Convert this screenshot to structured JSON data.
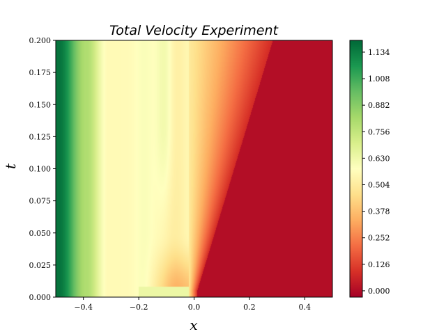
{
  "chart_data": {
    "type": "heatmap",
    "title": "Total Velocity Experiment",
    "xlabel": "x",
    "ylabel": "t",
    "xlim": [
      -0.5,
      0.5
    ],
    "ylim": [
      0.0,
      0.2
    ],
    "x_ticks": [
      -0.4,
      -0.2,
      0.0,
      0.2,
      0.4
    ],
    "x_tick_labels": [
      "−0.4",
      "−0.2",
      "0.0",
      "0.2",
      "0.4"
    ],
    "y_ticks": [
      0.0,
      0.025,
      0.05,
      0.075,
      0.1,
      0.125,
      0.15,
      0.175,
      0.2
    ],
    "y_tick_labels": [
      "0.000",
      "0.025",
      "0.050",
      "0.075",
      "0.100",
      "0.125",
      "0.150",
      "0.175",
      "0.200"
    ],
    "colorbar": {
      "colormap": "RdYlGn",
      "range": [
        -0.03,
        1.19
      ],
      "ticks": [
        0.0,
        0.126,
        0.252,
        0.378,
        0.504,
        0.63,
        0.756,
        0.882,
        1.008,
        1.134
      ],
      "tick_labels": [
        "0.000",
        "0.126",
        "0.252",
        "0.378",
        "0.504",
        "0.630",
        "0.756",
        "0.882",
        "1.008",
        "1.134"
      ]
    },
    "samples": [
      {
        "x": -0.49,
        "t": 0.1,
        "value": 1.15
      },
      {
        "x": -0.4,
        "t": 0.1,
        "value": 0.8
      },
      {
        "x": -0.3,
        "t": 0.1,
        "value": 0.56
      },
      {
        "x": -0.2,
        "t": 0.1,
        "value": 0.6
      },
      {
        "x": -0.12,
        "t": 0.15,
        "value": 0.64
      },
      {
        "x": 0.02,
        "t": 0.15,
        "value": 0.38
      },
      {
        "x": 0.1,
        "t": 0.05,
        "value": 0.05
      },
      {
        "x": 0.4,
        "t": 0.1,
        "value": 0.0
      }
    ]
  }
}
